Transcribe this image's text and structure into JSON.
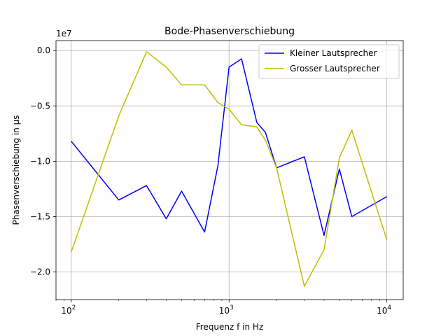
{
  "chart_data": {
    "type": "line",
    "title": "Bode-Phasenverschiebung",
    "xlabel": "Frequenz f in Hz",
    "ylabel": "Phasenverschiebung in µs",
    "x_scale": "log",
    "xlim": [
      80,
      12700
    ],
    "ylim": [
      -22500000,
      900000
    ],
    "y_offset_label": "1e7",
    "x_ticks": [
      {
        "value": 100,
        "base": "10",
        "exp": "2"
      },
      {
        "value": 1000,
        "base": "10",
        "exp": "3"
      },
      {
        "value": 10000,
        "base": "10",
        "exp": "4"
      }
    ],
    "y_ticks": [
      {
        "value": 0,
        "label": "0.0"
      },
      {
        "value": -5000000,
        "label": "−0.5"
      },
      {
        "value": -10000000,
        "label": "−1.0"
      },
      {
        "value": -15000000,
        "label": "−1.5"
      },
      {
        "value": -20000000,
        "label": "−2.0"
      }
    ],
    "grid": true,
    "legend_position": "top-right",
    "series": [
      {
        "name": "Kleiner Lautsprecher",
        "color": "#0000ff",
        "x": [
          100,
          200,
          300,
          400,
          500,
          700,
          850,
          1000,
          1200,
          1500,
          1700,
          2000,
          3000,
          4000,
          5000,
          6000,
          10000
        ],
        "y": [
          -8200000,
          -13500000,
          -12200000,
          -15200000,
          -12700000,
          -16400000,
          -10400000,
          -1500000,
          -750000,
          -6500000,
          -7400000,
          -10600000,
          -9600000,
          -16700000,
          -10700000,
          -15000000,
          -13200000
        ]
      },
      {
        "name": "Grosser Lautsprecher",
        "color": "#bfbf00",
        "x": [
          100,
          200,
          300,
          400,
          500,
          700,
          850,
          1000,
          1200,
          1500,
          1700,
          2000,
          3000,
          4000,
          5000,
          6000,
          10000
        ],
        "y": [
          -18200000,
          -5900000,
          -100000,
          -1500000,
          -3100000,
          -3100000,
          -4700000,
          -5300000,
          -6700000,
          -6900000,
          -8100000,
          -10600000,
          -21300000,
          -18000000,
          -9700000,
          -7200000,
          -17100000
        ]
      }
    ]
  }
}
